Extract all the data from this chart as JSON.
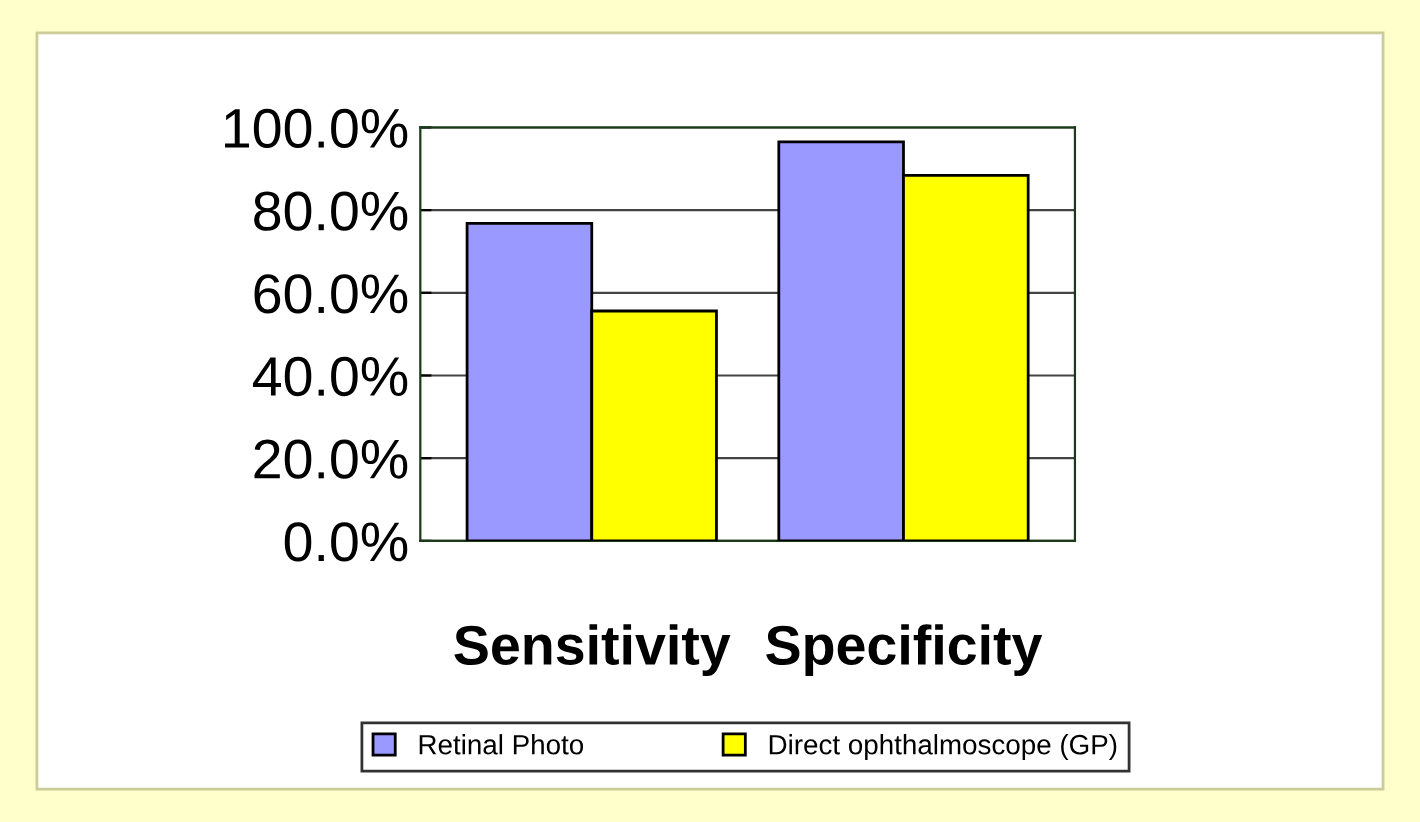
{
  "chart_data": {
    "type": "bar",
    "categories": [
      "Sensitivity",
      "Specificity"
    ],
    "series": [
      {
        "name": "Retinal Photo",
        "color": "#9999ff",
        "values": [
          76.8,
          96.5
        ]
      },
      {
        "name": "Direct ophthalmoscope (GP)",
        "color": "#ffff00",
        "values": [
          55.6,
          88.4
        ]
      }
    ],
    "ylim": [
      0,
      100
    ],
    "yticks": [
      {
        "value": 0,
        "label": "0.0%"
      },
      {
        "value": 20,
        "label": "20.0%"
      },
      {
        "value": 40,
        "label": "40.0%"
      },
      {
        "value": 60,
        "label": "60.0%"
      },
      {
        "value": 80,
        "label": "80.0%"
      },
      {
        "value": 100,
        "label": "100.0%"
      }
    ],
    "grid": "y",
    "legend": "bottom"
  }
}
